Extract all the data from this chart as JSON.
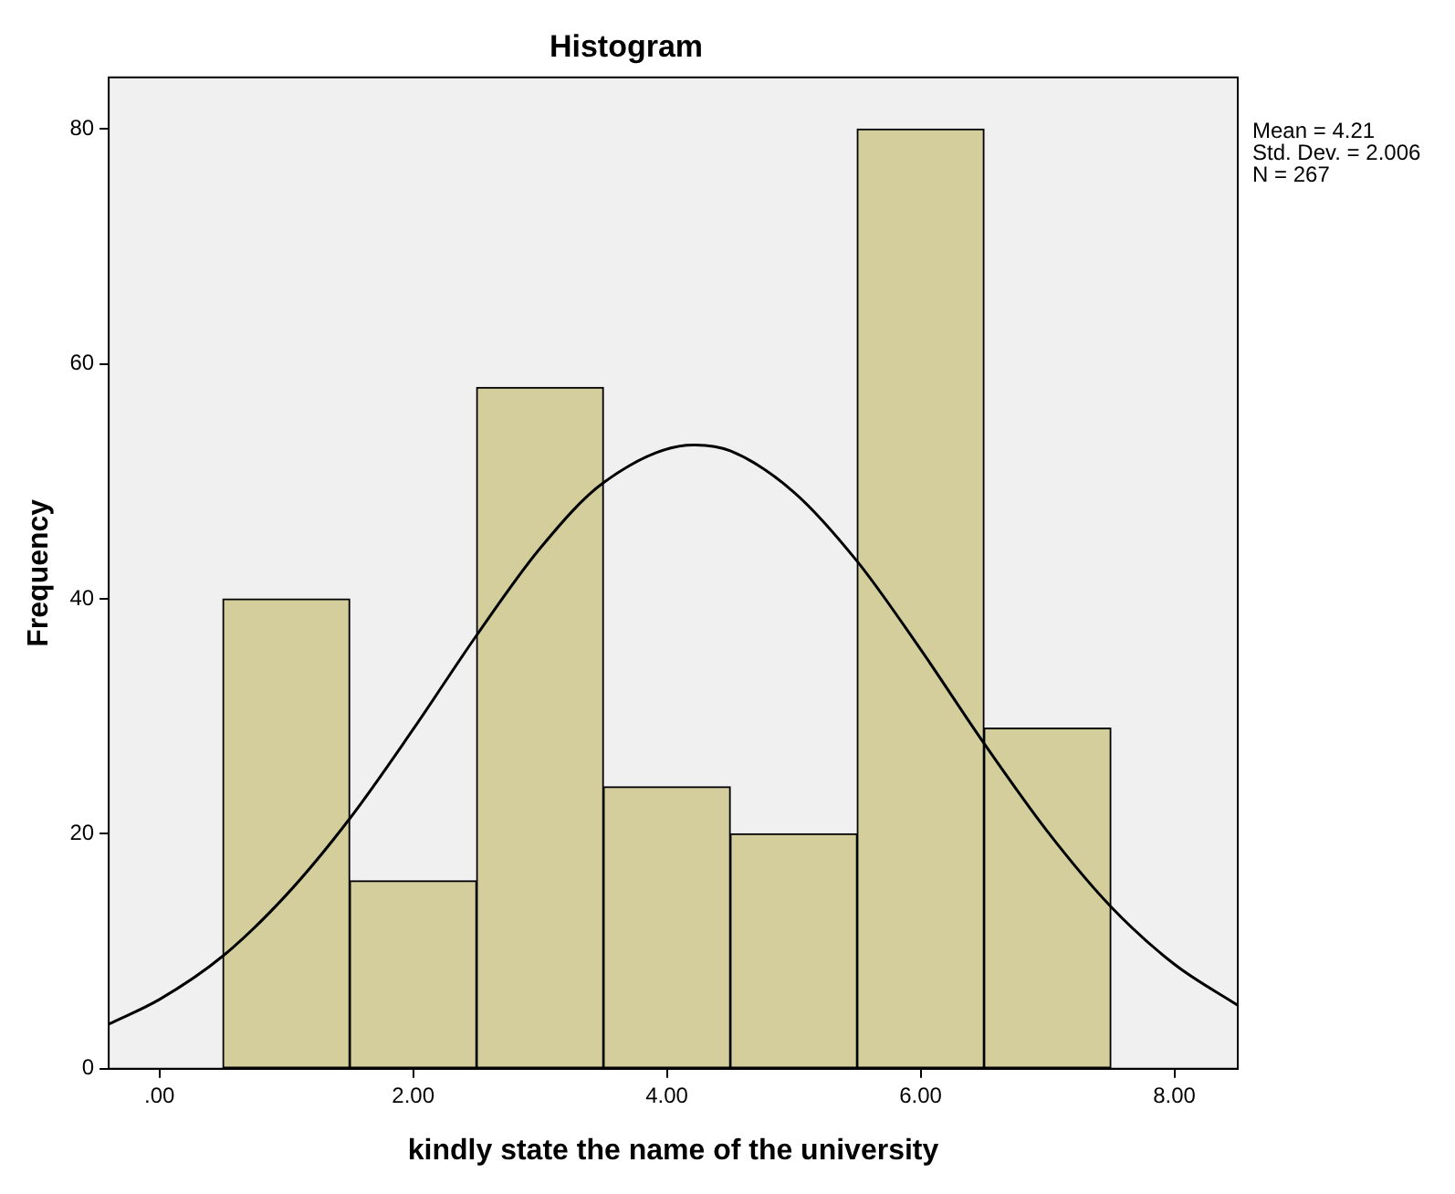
{
  "chart_data": {
    "type": "histogram",
    "title": "Histogram",
    "xlabel": "kindly state the name of the university",
    "ylabel": "Frequency",
    "bins": [
      0.5,
      1.5,
      2.5,
      3.5,
      4.5,
      5.5,
      6.5,
      7.5
    ],
    "values": [
      40,
      16,
      58,
      24,
      20,
      80,
      29
    ],
    "color": "#d3ce9c",
    "series": [
      {
        "type": "line",
        "color": "#000000",
        "marker": "none",
        "x": [
          -0.4,
          0,
          0.5,
          1,
          1.5,
          2,
          2.5,
          3,
          3.5,
          4.21,
          4.5,
          5,
          5.5,
          6,
          6.5,
          7,
          7.5,
          8,
          8.5
        ],
        "values": [
          3.8,
          5.9,
          9.6,
          14.8,
          21.3,
          28.9,
          36.9,
          44.3,
          49.9,
          53.1,
          52.6,
          49.1,
          43.2,
          35.7,
          27.7,
          20.2,
          13.8,
          8.9,
          5.4
        ]
      }
    ],
    "xlim": [
      -0.4,
      8.5
    ],
    "xticks": [
      {
        "value": 0,
        "label": ".00"
      },
      {
        "value": 2,
        "label": "2.00"
      },
      {
        "value": 4,
        "label": "4.00"
      },
      {
        "value": 6,
        "label": "6.00"
      },
      {
        "value": 8,
        "label": "8.00"
      }
    ],
    "ylim": [
      0,
      84.4
    ],
    "yticks": [
      0,
      20,
      40,
      60,
      80
    ],
    "annotations": [
      "Mean = 4.21",
      "Std. Dev. = 2.006",
      "N = 267"
    ],
    "legend": false
  }
}
